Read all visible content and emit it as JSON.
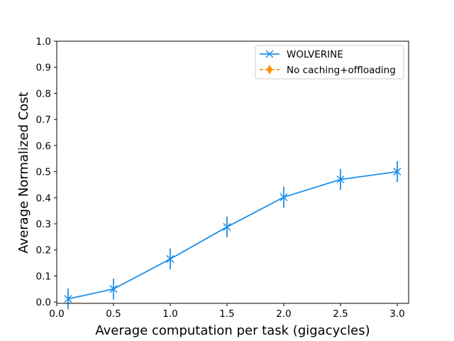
{
  "chart_data": {
    "type": "line",
    "title": "",
    "xlabel": "Average computation per task (gigacycles)",
    "ylabel": "Average Normalized Cost",
    "xlim": [
      0.0,
      3.1
    ],
    "ylim": [
      -0.005,
      1.0
    ],
    "xticks": [
      0.0,
      0.5,
      1.0,
      1.5,
      2.0,
      2.5,
      3.0
    ],
    "xtick_labels": [
      "0.0",
      "0.5",
      "1.0",
      "1.5",
      "2.0",
      "2.5",
      "3.0"
    ],
    "yticks": [
      0.0,
      0.1,
      0.2,
      0.3,
      0.4,
      0.5,
      0.6,
      0.7,
      0.8,
      0.9,
      1.0
    ],
    "ytick_labels": [
      "0.0",
      "0.1",
      "0.2",
      "0.3",
      "0.4",
      "0.5",
      "0.6",
      "0.7",
      "0.8",
      "0.9",
      "1.0"
    ],
    "grid": false,
    "legend_position": "top-right",
    "series": [
      {
        "name": "WOLVERINE",
        "color": "#1f8fe8",
        "marker": "x",
        "linestyle": "solid",
        "x": [
          0.1,
          0.5,
          1.0,
          1.5,
          2.0,
          2.5,
          3.0
        ],
        "y": [
          0.012,
          0.05,
          0.165,
          0.288,
          0.402,
          0.47,
          0.5
        ],
        "yerr": [
          0.04,
          0.04,
          0.04,
          0.04,
          0.04,
          0.04,
          0.04
        ]
      },
      {
        "name": "No caching+offloading",
        "color": "#ff8c00",
        "marker": "diamond",
        "linestyle": "dashed",
        "x": [],
        "y": [],
        "yerr": []
      }
    ]
  }
}
